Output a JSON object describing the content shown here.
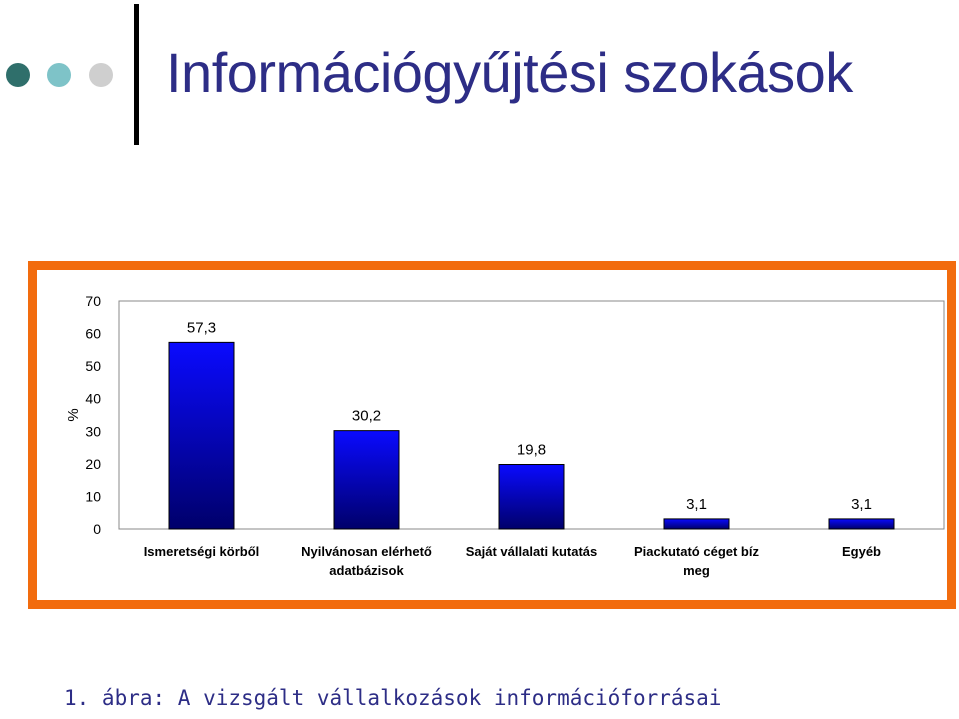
{
  "slide": {
    "title": "Információgyűjtési szokások",
    "caption": "1. ábra: A vizsgált vállalkozások információforrásai"
  },
  "colors": {
    "title": "#2d2d86",
    "frame": "#f26c0e",
    "bar_top": "#0a0aff",
    "bar_bottom": "#00006a",
    "dot1": "#2f6f6b",
    "dot2": "#7ec3c8",
    "dot3": "#cfcfcf"
  },
  "chart_data": {
    "type": "bar",
    "ylabel": "%",
    "ylim": [
      0,
      70
    ],
    "yticks": [
      0,
      10,
      20,
      30,
      40,
      50,
      60,
      70
    ],
    "categories": [
      [
        "Ismeretségi körből"
      ],
      [
        "Nyilvánosan elérhető",
        "adatbázisok"
      ],
      [
        "Saját vállalati kutatás"
      ],
      [
        "Piackutató céget bíz",
        "meg"
      ],
      [
        "Egyéb"
      ]
    ],
    "values": [
      57.3,
      30.2,
      19.8,
      3.1,
      3.1
    ],
    "value_labels": [
      "57,3",
      "30,2",
      "19,8",
      "3,1",
      "3,1"
    ],
    "grid": false,
    "legend": "none"
  }
}
